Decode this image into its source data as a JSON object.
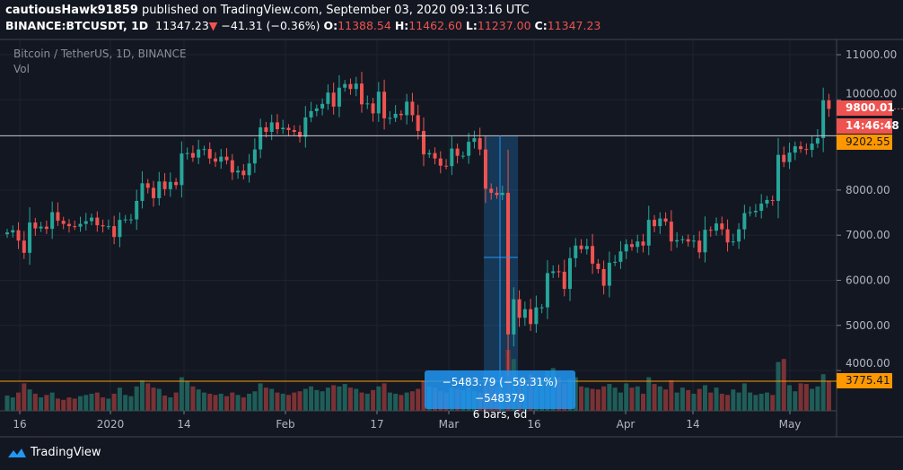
{
  "header": {
    "user": "cautiousHawk91859",
    "published": "published on TradingView.com, September 03, 2020 09:13:16 UTC",
    "symbol": "BINANCE:BTCUSDT, 1D",
    "last": "11347.23",
    "arrow": "▼",
    "change": "−41.31 (−0.36%)",
    "o_label": "O:",
    "o": "11388.54",
    "h_label": "H:",
    "h": "11462.60",
    "l_label": "L:",
    "l": "11237.00",
    "c_label": "C:",
    "c": "11347.23"
  },
  "legend": {
    "title": "Bitcoin / TetherUS, 1D, BINANCE",
    "vol": "Vol"
  },
  "price_labels": {
    "last": "9800.01",
    "countdown": "14:46:48",
    "hline_upper": "9202.55",
    "hline_lower": "3775.41"
  },
  "measure": {
    "line1": "−5483.79 (−59.31%) −548379",
    "line2": "6 bars, 6d"
  },
  "footer": {
    "brand": "TradingView"
  },
  "colors": {
    "up": "#26a69a",
    "down": "#ef5350",
    "hline_orange": "#ff9800",
    "measure": "#2196f3"
  },
  "chart_data": {
    "type": "candlestick",
    "y_ticks": [
      "11000.00",
      "10000.00",
      "8000.00",
      "7000.00",
      "6000.00",
      "5000.00",
      "4000.00"
    ],
    "x_ticks": [
      "16",
      "2020",
      "14",
      "Feb",
      "17",
      "Mar",
      "16",
      "Apr",
      "14",
      "May"
    ],
    "ylim": [
      3500,
      11500
    ],
    "hlines": [
      9202.55,
      3775.41
    ],
    "close": [
      7060,
      7110,
      6880,
      6610,
      7280,
      7150,
      7190,
      7140,
      7510,
      7320,
      7250,
      7200,
      7190,
      7250,
      7310,
      7390,
      7220,
      7195,
      7200,
      6960,
      7340,
      7350,
      7350,
      7760,
      8150,
      8050,
      7820,
      8190,
      8020,
      8180,
      8110,
      8810,
      8820,
      8720,
      8900,
      8910,
      8700,
      8630,
      8740,
      8660,
      8390,
      8430,
      8330,
      8590,
      8900,
      9390,
      9290,
      9500,
      9350,
      9380,
      9330,
      9290,
      9180,
      9610,
      9750,
      9810,
      9910,
      10160,
      9850,
      10270,
      10350,
      10240,
      10360,
      9900,
      9920,
      9700,
      10180,
      9590,
      9600,
      9690,
      9660,
      9960,
      9660,
      9310,
      8790,
      8820,
      8700,
      8540,
      8530,
      8920,
      8760,
      8760,
      9070,
      9150,
      8900,
      8030,
      7940,
      7890,
      7940,
      4800,
      5580,
      5170,
      5360,
      5030,
      5400,
      5400,
      6160,
      6200,
      6190,
      5810,
      6490,
      6770,
      6690,
      6760,
      6370,
      6250,
      5880,
      6390,
      6410,
      6640,
      6800,
      6740,
      6860,
      6770,
      7340,
      7200,
      7370,
      7300,
      6860,
      6890,
      6910,
      6860,
      6880,
      6620,
      7120,
      7100,
      7260,
      7130,
      6840,
      6860,
      7130,
      7490,
      7510,
      7540,
      7700,
      7780,
      7760,
      8780,
      8620,
      8830,
      8970,
      8910,
      8890,
      9030,
      9150,
      9990,
      9800.01
    ],
    "volume": [
      25,
      22,
      30,
      45,
      35,
      28,
      22,
      26,
      30,
      20,
      18,
      22,
      20,
      24,
      26,
      28,
      30,
      22,
      20,
      28,
      38,
      26,
      24,
      40,
      50,
      45,
      38,
      36,
      25,
      22,
      30,
      55,
      48,
      40,
      35,
      30,
      28,
      26,
      28,
      24,
      30,
      26,
      22,
      28,
      32,
      45,
      38,
      36,
      30,
      28,
      26,
      30,
      32,
      36,
      40,
      34,
      32,
      38,
      42,
      40,
      44,
      38,
      36,
      30,
      28,
      34,
      40,
      45,
      30,
      28,
      26,
      30,
      32,
      36,
      48,
      40,
      38,
      32,
      30,
      38,
      36,
      34,
      38,
      32,
      30,
      45,
      50,
      40,
      48,
      100,
      85,
      50,
      45,
      60,
      55,
      50,
      65,
      70,
      55,
      45,
      52,
      55,
      40,
      38,
      36,
      35,
      40,
      44,
      38,
      30,
      45,
      38,
      40,
      28,
      55,
      44,
      40,
      35,
      50,
      30,
      38,
      34,
      28,
      36,
      42,
      30,
      38,
      28,
      26,
      35,
      30,
      45,
      30,
      26,
      28,
      30,
      26,
      80,
      85,
      42,
      32,
      45,
      44,
      36,
      40,
      60,
      48
    ]
  }
}
